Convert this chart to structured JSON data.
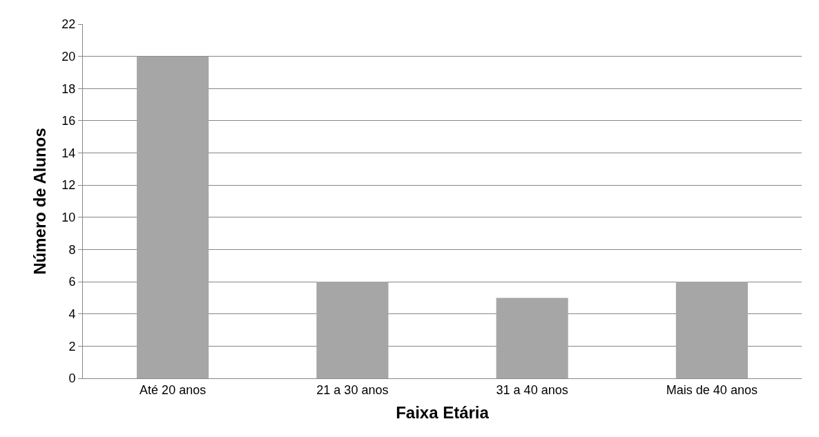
{
  "chart_data": {
    "type": "bar",
    "categories": [
      "Até 20 anos",
      "21 a 30 anos",
      "31 a 40 anos",
      "Mais de 40 anos"
    ],
    "values": [
      20,
      6,
      5,
      6
    ],
    "color": "#a6a6a6",
    "xlabel": "Faixa Etária",
    "ylabel": "Número de Alunos",
    "ylim": [
      0,
      22
    ],
    "yticks": [
      0,
      2,
      4,
      6,
      8,
      10,
      12,
      14,
      16,
      18,
      20,
      22
    ],
    "grid": "y"
  }
}
